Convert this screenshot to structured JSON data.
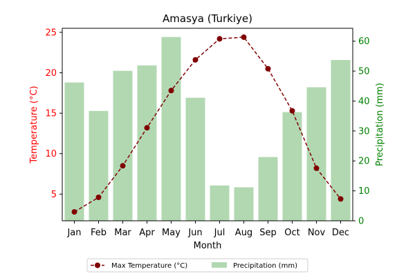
{
  "chart_data": {
    "type": "bar+line",
    "title": "Amasya (Turkiye)",
    "xlabel": "Month",
    "categories": [
      "Jan",
      "Feb",
      "Mar",
      "Apr",
      "May",
      "Jun",
      "Jul",
      "Aug",
      "Sep",
      "Oct",
      "Nov",
      "Dec"
    ],
    "left_axis": {
      "label": "Temperature (°C)",
      "ylim": [
        1.7,
        25.5
      ],
      "ticks": [
        5,
        10,
        15,
        20,
        25
      ],
      "color": "#ff0000"
    },
    "right_axis": {
      "label": "Precipitation (mm)",
      "ylim": [
        0,
        64.3
      ],
      "ticks": [
        0,
        10,
        20,
        30,
        40,
        50,
        60
      ],
      "color": "#008000"
    },
    "series": [
      {
        "name": "Max Temperature (°C)",
        "type": "line",
        "axis": "left",
        "color": "#800000",
        "line_style": "dashed",
        "marker": "circle",
        "values": [
          2.8,
          4.6,
          8.5,
          13.2,
          17.8,
          21.6,
          24.2,
          24.4,
          20.5,
          15.3,
          8.2,
          4.4
        ]
      },
      {
        "name": "Precipitation (mm)",
        "type": "bar",
        "axis": "right",
        "color": "#b2d8b2",
        "values": [
          46.2,
          36.7,
          50.1,
          51.9,
          61.4,
          41.1,
          11.8,
          11.2,
          21.3,
          36.3,
          44.6,
          53.7
        ]
      }
    ],
    "legend": {
      "placement": "bottom-center",
      "entries": [
        "Max Temperature (°C)",
        "Precipitation (mm)"
      ]
    },
    "grid": false
  }
}
